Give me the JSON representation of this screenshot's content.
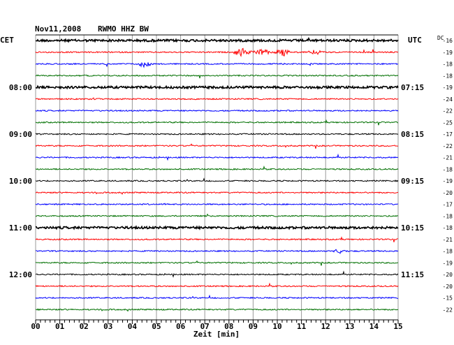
{
  "header": {
    "date": "Nov11,2008",
    "station": "RWMO HHZ BW"
  },
  "timezones": {
    "left": "CET",
    "right": "UTC",
    "dc_header": "DC"
  },
  "chart_data": {
    "type": "line",
    "title": "Nov11,2008 RWMO HHZ BW",
    "xlabel": "Zeit [min]",
    "xlim": [
      0,
      15
    ],
    "x_ticks": [
      "00",
      "01",
      "02",
      "03",
      "04",
      "05",
      "06",
      "07",
      "08",
      "09",
      "10",
      "11",
      "12",
      "13",
      "14",
      "15"
    ],
    "trace_colors": [
      "#000000",
      "#ff0000",
      "#0000ff",
      "#007000"
    ],
    "left_hour_labels": [
      "08:00",
      "09:00",
      "10:00",
      "11:00",
      "12:00"
    ],
    "right_hour_labels": [
      "07:15",
      "08:15",
      "09:15",
      "10:15",
      "11:15"
    ],
    "dc_offsets": [
      -16,
      -19,
      -18,
      -18,
      -19,
      -24,
      -22,
      -25,
      -17,
      -22,
      -21,
      -18,
      -19,
      -20,
      -17,
      -18,
      -18,
      -21,
      -18,
      -19,
      -20,
      -20,
      -15,
      -22
    ],
    "grid": true,
    "trace_count": 24,
    "minutes_per_trace": 15
  }
}
